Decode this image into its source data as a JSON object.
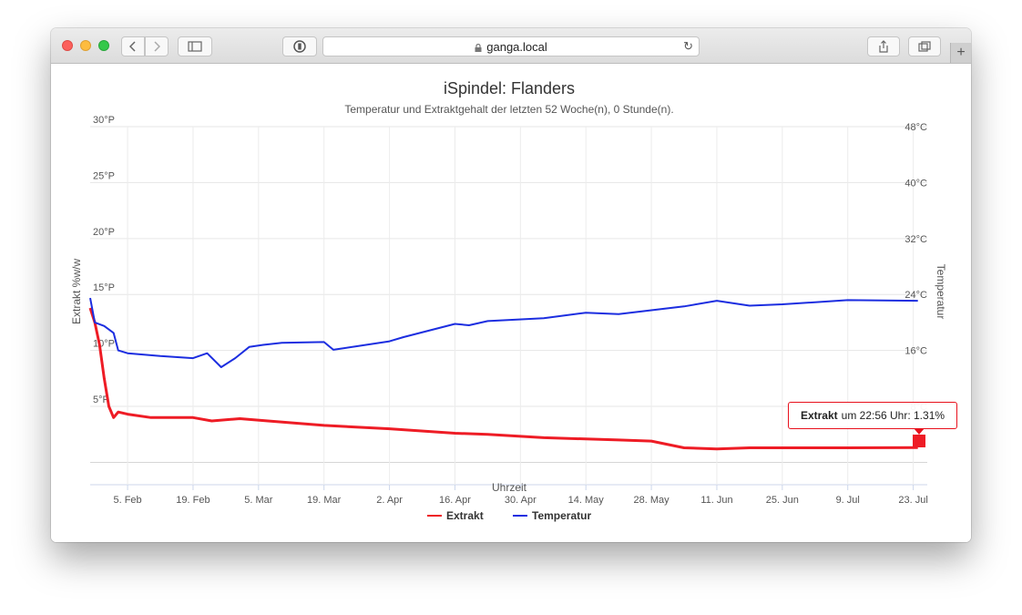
{
  "browser": {
    "url": "ganga.local",
    "icons": [
      "back-icon",
      "forward-icon",
      "sidebar-icon",
      "reader-icon",
      "lock-icon",
      "reload-icon",
      "share-icon",
      "tabs-icon",
      "new-tab-icon"
    ]
  },
  "chart_data": {
    "type": "line",
    "title": "iSpindel: Flanders",
    "subtitle": "Temperatur und Extraktgehalt der letzten 52 Woche(n), 0 Stunde(n).",
    "xlabel": "Uhrzeit",
    "ylabel_left": "Extrakt %w/w",
    "ylabel_right": "Temperatur",
    "x_ticks": [
      "5. Feb",
      "19. Feb",
      "5. Mar",
      "19. Mar",
      "2. Apr",
      "16. Apr",
      "30. Apr",
      "14. May",
      "28. May",
      "11. Jun",
      "25. Jun",
      "9. Jul",
      "23. Jul"
    ],
    "y_left_ticks": [
      "5°P",
      "10°P",
      "15°P",
      "20°P",
      "25°P",
      "30°P"
    ],
    "y_left_range": [
      -2,
      30
    ],
    "y_right_ticks": [
      "8°C",
      "16°C",
      "24°C",
      "32°C",
      "40°C",
      "48°C"
    ],
    "y_right_range": [
      -3.2,
      48
    ],
    "grid": true,
    "legend_position": "bottom",
    "colors": {
      "extrakt": "#ee1c25",
      "temperatur": "#1c2ee0"
    },
    "series": [
      {
        "name": "Extrakt",
        "axis": "left",
        "x": [
          "Jan 28",
          "Jan 29",
          "Jan 30",
          "Jan 31",
          "Feb 1",
          "Feb 2",
          "Feb 3",
          "Feb 5",
          "Feb 10",
          "Feb 19",
          "Feb 23",
          "Mar 1",
          "Mar 7",
          "Mar 19",
          "Apr 2",
          "Apr 16",
          "Apr 23",
          "May 5",
          "May 21",
          "May 28",
          "Jun 4",
          "Jun 11",
          "Jun 18",
          "Jul 9",
          "Jul 24"
        ],
        "values": [
          13.8,
          12.5,
          10.5,
          7.5,
          5.0,
          4.0,
          4.5,
          4.3,
          4.0,
          4.0,
          3.7,
          3.9,
          3.7,
          3.3,
          3.0,
          2.6,
          2.5,
          2.2,
          2.0,
          1.9,
          1.3,
          1.2,
          1.3,
          1.3,
          1.31
        ]
      },
      {
        "name": "Temperatur",
        "axis": "right",
        "x": [
          "Jan 28",
          "Jan 29",
          "Jan 31",
          "Feb 2",
          "Feb 3",
          "Feb 5",
          "Feb 12",
          "Feb 19",
          "Feb 22",
          "Feb 25",
          "Feb 28",
          "Mar 3",
          "Mar 6",
          "Mar 10",
          "Mar 19",
          "Mar 21",
          "Apr 2",
          "Apr 5",
          "Apr 16",
          "Apr 19",
          "Apr 23",
          "May 5",
          "May 14",
          "May 21",
          "Jun 4",
          "Jun 11",
          "Jun 18",
          "Jun 25",
          "Jul 9",
          "Jul 24"
        ],
        "values": [
          23.5,
          20.0,
          19.5,
          18.5,
          16.0,
          15.6,
          15.2,
          14.9,
          15.6,
          13.6,
          14.9,
          16.5,
          16.8,
          17.1,
          17.2,
          16.1,
          17.3,
          17.9,
          19.8,
          19.6,
          20.2,
          20.6,
          21.4,
          21.2,
          22.3,
          23.1,
          22.4,
          22.6,
          23.2,
          23.1
        ]
      }
    ],
    "tooltip": {
      "series": "Extrakt",
      "text": "um 22:56 Uhr: 1.31%"
    }
  }
}
